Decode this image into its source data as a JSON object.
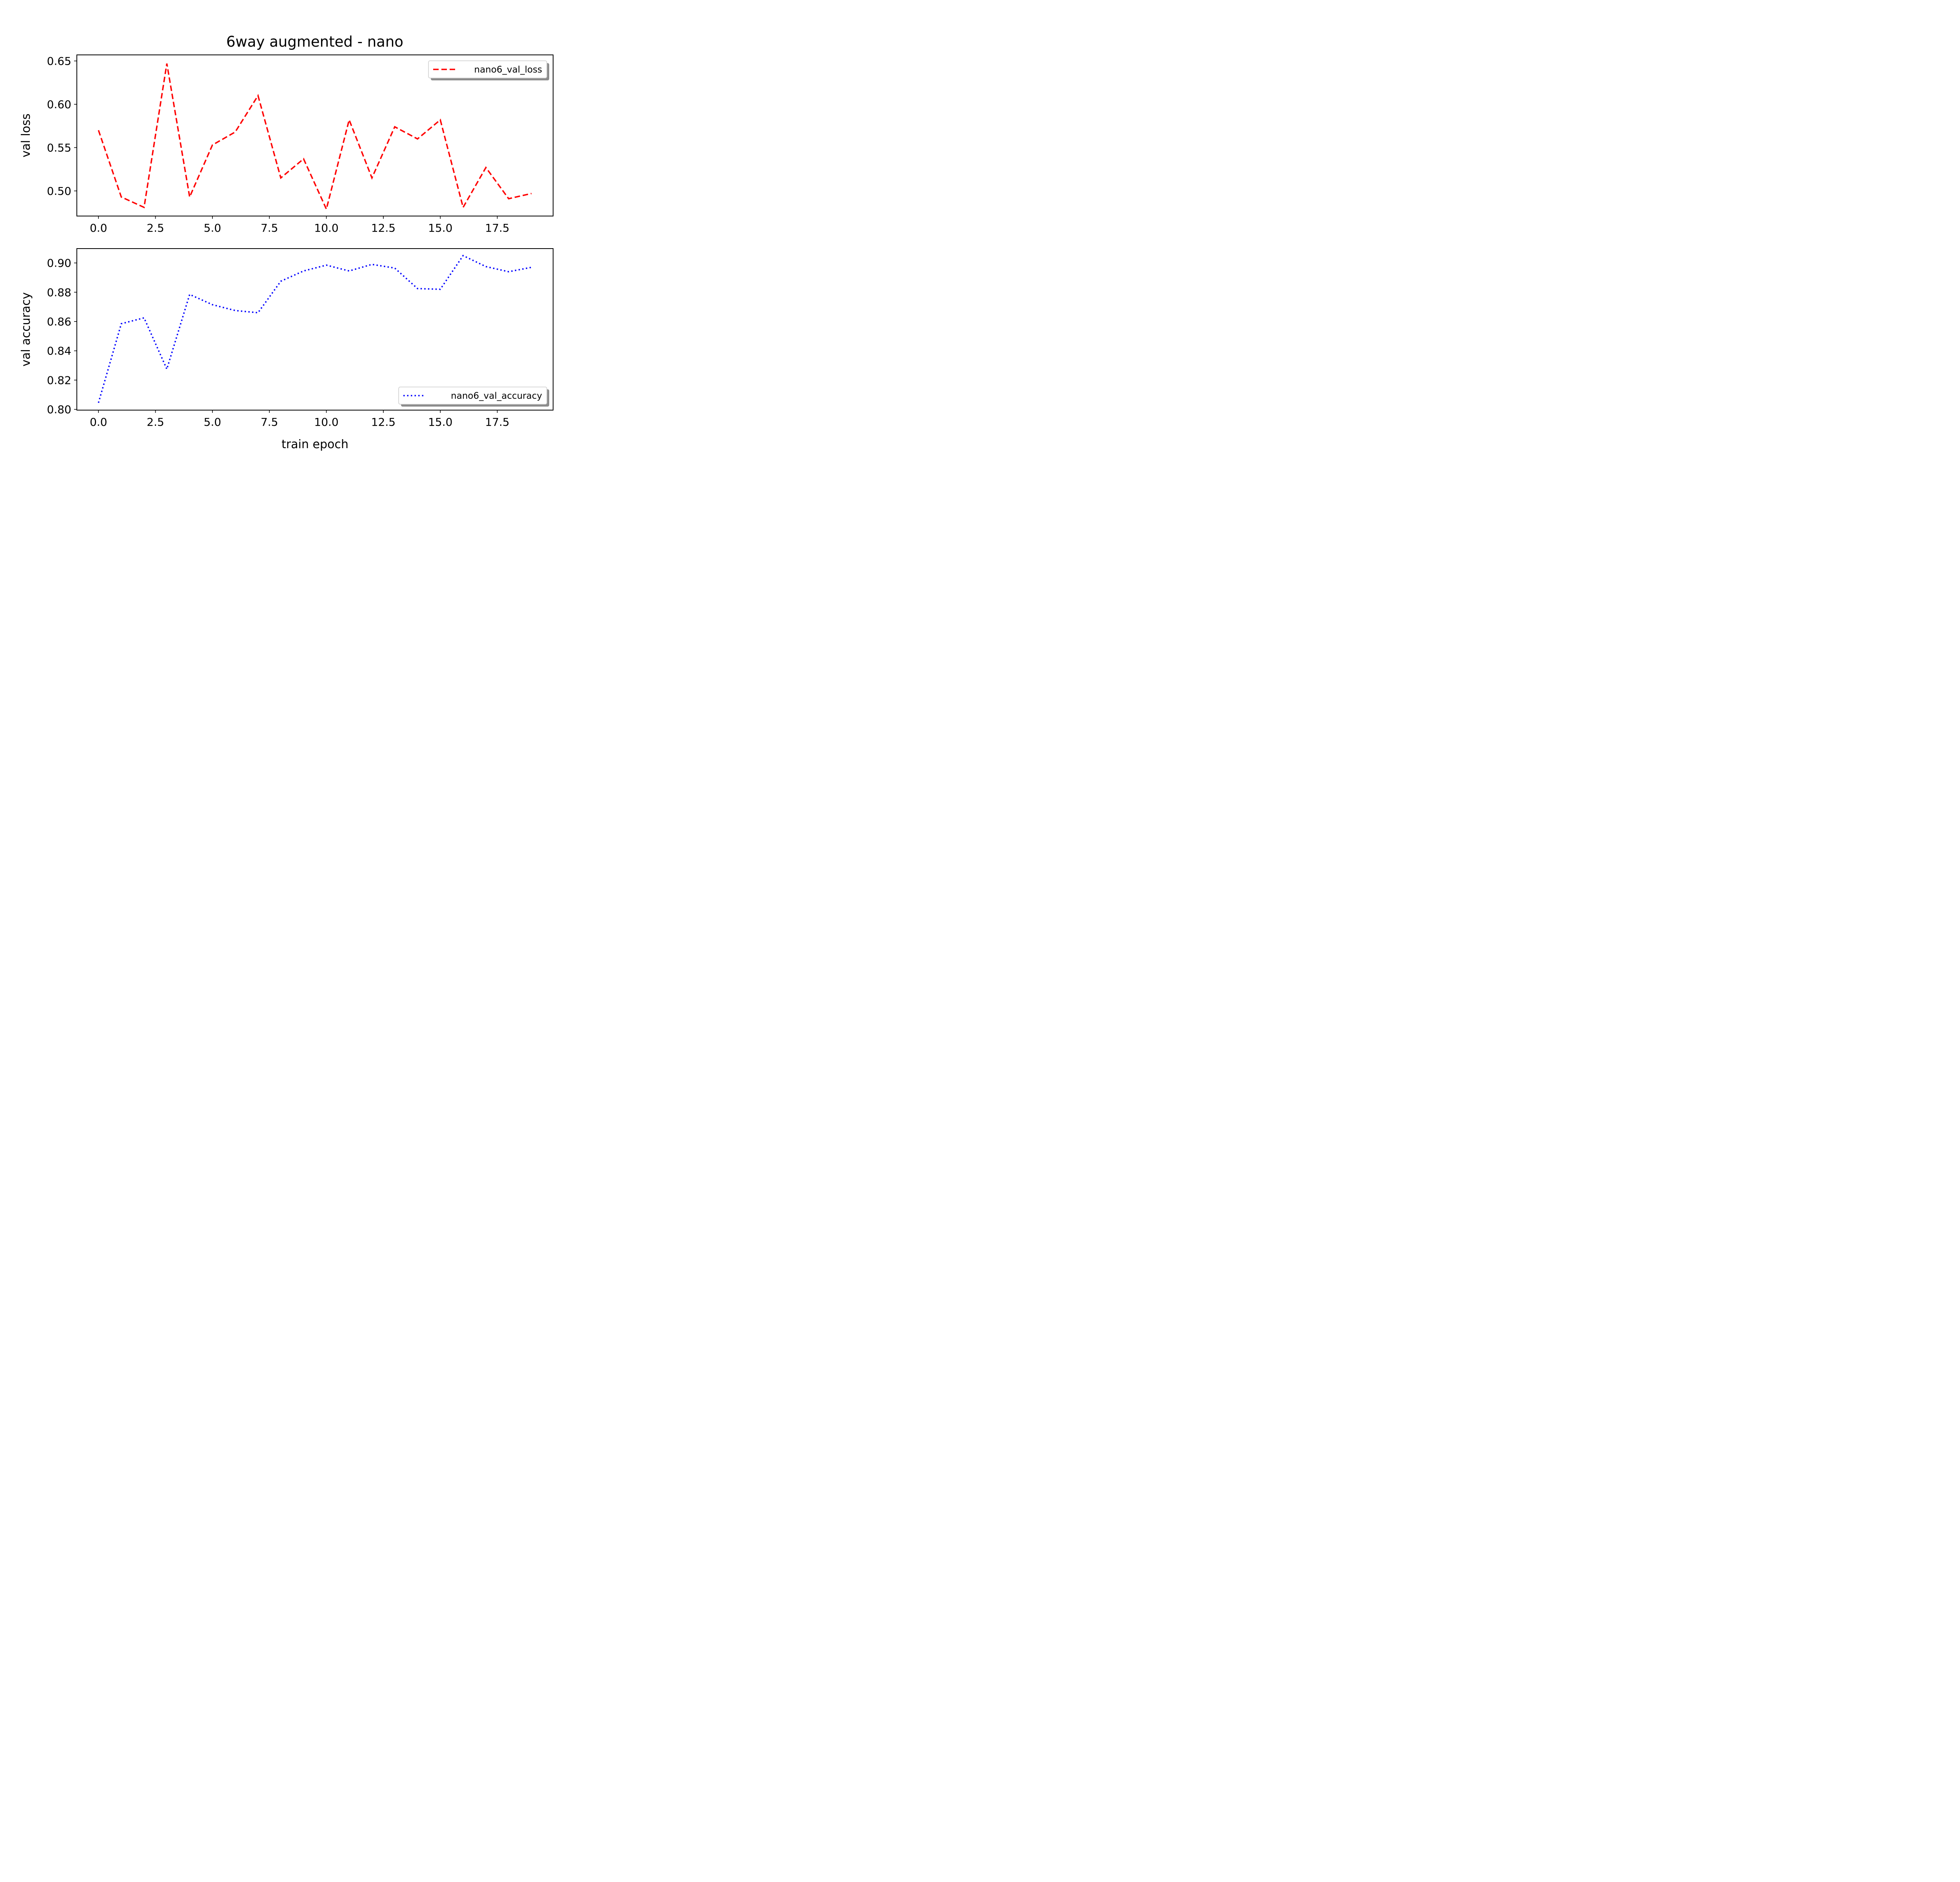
{
  "figure": {
    "title": "6way augmented - nano"
  },
  "chart_data": [
    {
      "type": "line",
      "title": "6way augmented - nano",
      "xlabel": "",
      "ylabel": "val loss",
      "xlim": [
        -0.95,
        19.95
      ],
      "ylim": [
        0.471,
        0.657
      ],
      "xticks": [
        0.0,
        2.5,
        5.0,
        7.5,
        10.0,
        12.5,
        15.0,
        17.5
      ],
      "xtick_labels": [
        "0.0",
        "2.5",
        "5.0",
        "7.5",
        "10.0",
        "12.5",
        "15.0",
        "17.5"
      ],
      "yticks": [
        0.5,
        0.55,
        0.6,
        0.65
      ],
      "ytick_labels": [
        "0.50",
        "0.55",
        "0.60",
        "0.65"
      ],
      "grid": false,
      "legend_position": "upper right",
      "series": [
        {
          "name": "nano6_val_loss",
          "color": "#ff0000",
          "line_style": "dashed",
          "x": [
            0,
            1,
            2,
            3,
            4,
            5,
            6,
            7,
            8,
            9,
            10,
            11,
            12,
            13,
            14,
            15,
            16,
            17,
            18,
            19
          ],
          "values": [
            0.57,
            0.493,
            0.481,
            0.647,
            0.493,
            0.553,
            0.568,
            0.61,
            0.515,
            0.537,
            0.479,
            0.582,
            0.515,
            0.574,
            0.56,
            0.582,
            0.481,
            0.527,
            0.491,
            0.497
          ]
        }
      ]
    },
    {
      "type": "line",
      "title": "",
      "xlabel": "train epoch",
      "ylabel": "val accuracy",
      "xlim": [
        -0.95,
        19.95
      ],
      "ylim": [
        0.7995,
        0.9098
      ],
      "xticks": [
        0.0,
        2.5,
        5.0,
        7.5,
        10.0,
        12.5,
        15.0,
        17.5
      ],
      "xtick_labels": [
        "0.0",
        "2.5",
        "5.0",
        "7.5",
        "10.0",
        "12.5",
        "15.0",
        "17.5"
      ],
      "yticks": [
        0.8,
        0.82,
        0.84,
        0.86,
        0.88,
        0.9
      ],
      "ytick_labels": [
        "0.80",
        "0.82",
        "0.84",
        "0.86",
        "0.88",
        "0.90"
      ],
      "grid": false,
      "legend_position": "lower right",
      "series": [
        {
          "name": "nano6_val_accuracy",
          "color": "#0000ff",
          "line_style": "dotted",
          "x": [
            0,
            1,
            2,
            3,
            4,
            5,
            6,
            7,
            8,
            9,
            10,
            11,
            12,
            13,
            14,
            15,
            16,
            17,
            18,
            19
          ],
          "values": [
            0.8045,
            0.8585,
            0.8625,
            0.8275,
            0.8785,
            0.8715,
            0.8675,
            0.866,
            0.8875,
            0.8945,
            0.8985,
            0.8945,
            0.899,
            0.8965,
            0.8825,
            0.882,
            0.905,
            0.8975,
            0.894,
            0.897
          ]
        }
      ]
    }
  ]
}
